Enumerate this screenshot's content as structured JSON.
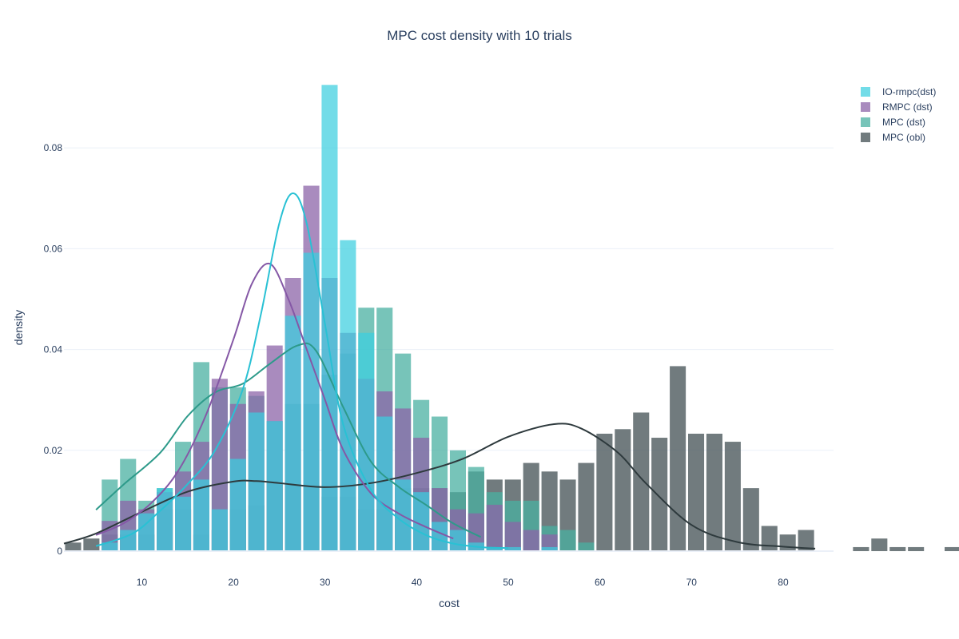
{
  "chart_data": {
    "type": "bar",
    "title": "MPC cost density with 10 trials",
    "xlabel": "cost",
    "ylabel": "density",
    "xlim": [
      1.5,
      85.5
    ],
    "ylim": [
      0,
      0.0935
    ],
    "x_ticks": [
      10,
      20,
      30,
      40,
      50,
      60,
      70,
      80
    ],
    "y_ticks": [
      0,
      0.02,
      0.04,
      0.06,
      0.08
    ],
    "y_tick_labels": [
      "0",
      "0.02",
      "0.04",
      "0.06",
      "0.08"
    ],
    "grid": true,
    "legend_position": "top-right",
    "bin_width": 2,
    "bar_gap": 0.25,
    "series": [
      {
        "name": "MPC (obl)",
        "color": "#4d5a5e",
        "opacity": 0.8,
        "line_color": "#2e3a3d",
        "bins_start": 2.5,
        "values": [
          0.0017,
          0.0025,
          0.0033,
          0.0033,
          0.0033,
          0.0083,
          0.0083,
          0.0033,
          0.0042,
          0.0083,
          0.0091,
          0.0133,
          0.0133,
          0.0125,
          0.0108,
          0.0108,
          0.0083,
          0.0083,
          0.0125,
          0.0125,
          0.0125,
          0.0117,
          0.0158,
          0.0142,
          0.0142,
          0.0175,
          0.0158,
          0.0142,
          0.0175,
          0.0233,
          0.0242,
          0.0275,
          0.0225,
          0.0367,
          0.0233,
          0.0233,
          0.0217,
          0.0125,
          0.005,
          0.0033,
          0.0042,
          0,
          0,
          0.0008,
          0.0025,
          0.0008,
          0.0008,
          0,
          0.0008
        ],
        "kde_x": [
          1.5,
          5,
          10,
          15,
          20,
          22.5,
          25,
          30,
          35,
          40,
          45,
          50,
          55,
          58,
          62,
          65,
          70,
          75,
          80,
          83.5
        ],
        "kde_y": [
          0.0015,
          0.0035,
          0.0078,
          0.0118,
          0.0138,
          0.0139,
          0.0135,
          0.0127,
          0.0135,
          0.0155,
          0.0183,
          0.0227,
          0.0252,
          0.0243,
          0.0195,
          0.0135,
          0.0052,
          0.0018,
          0.0009,
          0.0005
        ]
      },
      {
        "name": "MPC (dst)",
        "color": "#49b0a2",
        "opacity": 0.75,
        "line_color": "#2d9a8a",
        "bins_start": 6.5,
        "values": [
          0.0142,
          0.0183,
          0.01,
          0.0125,
          0.0217,
          0.0375,
          0.0325,
          0.0325,
          0.0308,
          0.0258,
          0.0292,
          0.0292,
          0.035,
          0.0392,
          0.0483,
          0.0483,
          0.0392,
          0.03,
          0.0267,
          0.02,
          0.0167,
          0.0117,
          0.01,
          0.01,
          0.005,
          0.0042,
          0.0017
        ],
        "kde_x": [
          5,
          8,
          12,
          15,
          18,
          21,
          24,
          27,
          29,
          32,
          35,
          38,
          41,
          44,
          47
        ],
        "kde_y": [
          0.0082,
          0.0132,
          0.0195,
          0.0268,
          0.0315,
          0.0332,
          0.0372,
          0.0408,
          0.0398,
          0.0285,
          0.0178,
          0.0128,
          0.0092,
          0.0055,
          0.0028
        ]
      },
      {
        "name": "RMPC (dst)",
        "color": "#8c64a8",
        "opacity": 0.75,
        "line_color": "#8558a6",
        "bins_start": 6.5,
        "values": [
          0.006,
          0.01,
          0.0083,
          0.0117,
          0.0158,
          0.0217,
          0.0342,
          0.0292,
          0.0317,
          0.0408,
          0.0542,
          0.0725,
          0.0542,
          0.0433,
          0.0342,
          0.0317,
          0.0283,
          0.0225,
          0.0125,
          0.0083,
          0.0075,
          0.0092,
          0.0058,
          0.0042,
          0.0033
        ],
        "kde_x": [
          5,
          8,
          11,
          14,
          17,
          20,
          22,
          24,
          26,
          28,
          30,
          32,
          35,
          38,
          41,
          44
        ],
        "kde_y": [
          0.0032,
          0.0055,
          0.0095,
          0.016,
          0.027,
          0.042,
          0.053,
          0.057,
          0.05,
          0.04,
          0.03,
          0.02,
          0.0115,
          0.0075,
          0.0048,
          0.0025
        ]
      },
      {
        "name": "IO-rmpc(dst)",
        "color": "#3ccfdf",
        "opacity": 0.72,
        "line_color": "#29c1d4",
        "bins_start": 6.5,
        "values": [
          0.0017,
          0.0042,
          0.0075,
          0.0125,
          0.0108,
          0.0142,
          0.0083,
          0.0183,
          0.0275,
          0.0258,
          0.0467,
          0.0592,
          0.0925,
          0.0617,
          0.0433,
          0.0267,
          0.0142,
          0.0117,
          0.0058,
          0.0042,
          0.0017,
          0.0008,
          0.0008,
          0,
          0.0008
        ],
        "kde_x": [
          5,
          9,
          12,
          15,
          18,
          21,
          23,
          25,
          26.5,
          28,
          30,
          32,
          35,
          38,
          41,
          44,
          47,
          50
        ],
        "kde_y": [
          0.001,
          0.0035,
          0.008,
          0.0133,
          0.02,
          0.032,
          0.047,
          0.065,
          0.071,
          0.065,
          0.045,
          0.025,
          0.0122,
          0.0065,
          0.0032,
          0.0015,
          0.0008,
          0.0006
        ]
      }
    ]
  }
}
